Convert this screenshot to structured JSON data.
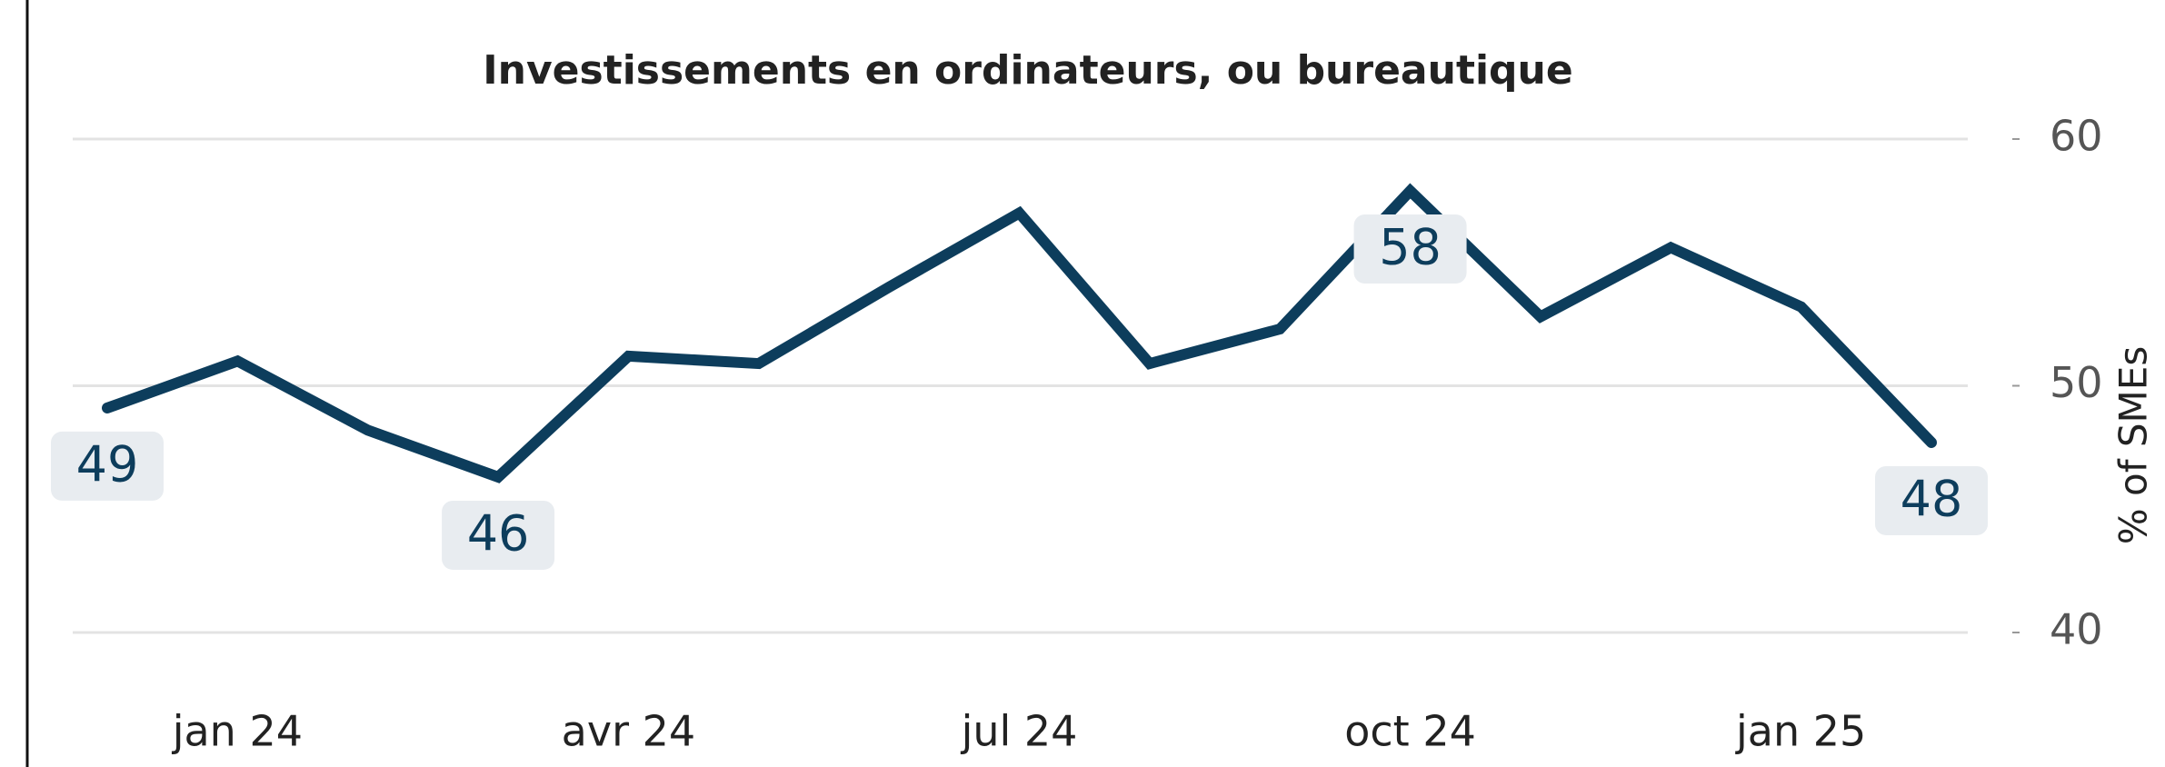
{
  "chart_data": {
    "type": "line",
    "title": "Investissements en ordinateurs,  ou bureautique",
    "y_axis_label": "% of SMEs",
    "categories": [
      null,
      "jan 24",
      null,
      null,
      "avr 24",
      null,
      null,
      "jul 24",
      null,
      null,
      "oct 24",
      null,
      null,
      "jan 25",
      null
    ],
    "series": [
      {
        "name": "Investissements en ordinateurs, ou bureautique",
        "color": "#0d3d5c",
        "values": [
          49.1,
          51.0,
          48.2,
          46.3,
          51.2,
          50.9,
          54.0,
          57.0,
          50.9,
          52.3,
          57.9,
          52.8,
          55.6,
          53.2,
          47.7
        ],
        "value_labels": [
          "49",
          null,
          null,
          "46",
          null,
          null,
          null,
          null,
          null,
          null,
          "58",
          null,
          null,
          null,
          "48"
        ]
      }
    ],
    "ylim": [
      40,
      60
    ],
    "yticks": [
      40,
      50,
      60
    ],
    "grid": true,
    "y_axis_side": "right"
  }
}
